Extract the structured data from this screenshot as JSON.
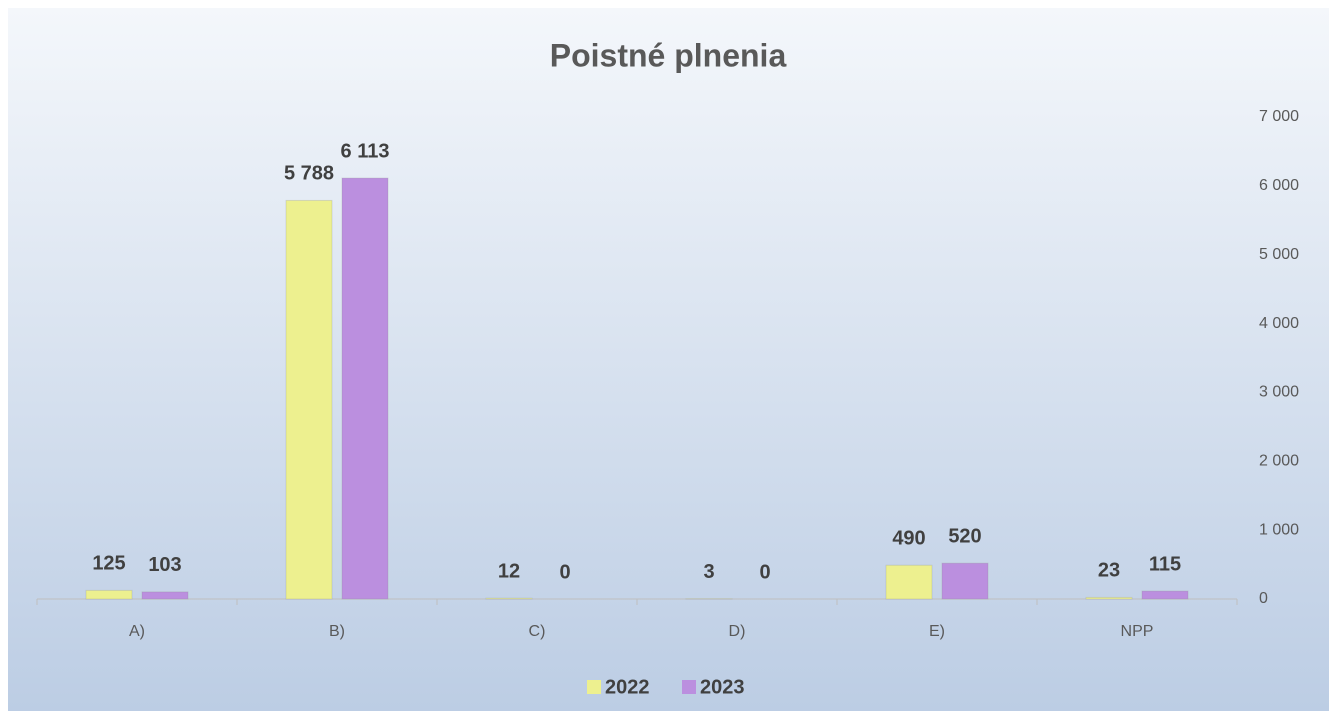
{
  "chart_data": {
    "type": "bar",
    "title": "Poistné plnenia",
    "categories": [
      "A)",
      "B)",
      "C)",
      "D)",
      "E)",
      "NPP"
    ],
    "series": [
      {
        "name": "2022",
        "color": "#edf08f",
        "values": [
          125,
          5788,
          12,
          3,
          490,
          23
        ],
        "value_labels": [
          "125",
          "5 788",
          "12",
          "3",
          "490",
          "23"
        ]
      },
      {
        "name": "2023",
        "color": "#bb8fdf",
        "values": [
          103,
          6113,
          0,
          0,
          520,
          115
        ],
        "value_labels": [
          "103",
          "6 113",
          "0",
          "0",
          "520",
          "115"
        ]
      }
    ],
    "ylim": [
      0,
      7000
    ],
    "yticks": [
      0,
      {
        "value": 1000,
        "label": "1 000"
      },
      {
        "value": 2000,
        "label": "2 000"
      },
      {
        "value": 3000,
        "label": "3 000"
      },
      {
        "value": 4000,
        "label": "4 000"
      },
      {
        "value": 5000,
        "label": "5 000"
      },
      {
        "value": 6000,
        "label": "6 000"
      },
      {
        "value": 7000,
        "label": "7 000"
      }
    ],
    "y_axis_side": "right",
    "legend": "bottom"
  }
}
